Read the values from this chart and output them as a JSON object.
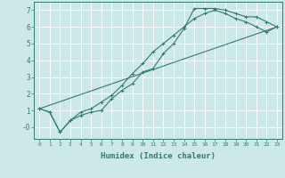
{
  "xlabel": "Humidex (Indice chaleur)",
  "ylabel": "",
  "bg_color": "#cce8e8",
  "grid_color": "#ffffff",
  "line_color": "#2d7d6e",
  "xlim": [
    -0.5,
    23.5
  ],
  "ylim": [
    -0.7,
    7.5
  ],
  "xticks": [
    0,
    1,
    2,
    3,
    4,
    5,
    6,
    7,
    8,
    9,
    10,
    11,
    12,
    13,
    14,
    15,
    16,
    17,
    18,
    19,
    20,
    21,
    22,
    23
  ],
  "yticks": [
    0,
    1,
    2,
    3,
    4,
    5,
    6,
    7
  ],
  "ytick_labels": [
    "-0",
    "1",
    "2",
    "3",
    "4",
    "5",
    "6",
    "7"
  ],
  "line1_x": [
    0,
    1,
    2,
    3,
    4,
    5,
    6,
    7,
    8,
    9,
    10,
    11,
    12,
    13,
    14,
    15,
    16,
    17,
    18,
    19,
    20,
    21,
    22,
    23
  ],
  "line1_y": [
    1.1,
    0.9,
    -0.3,
    0.4,
    0.7,
    0.9,
    1.0,
    1.7,
    2.2,
    2.6,
    3.3,
    3.5,
    4.4,
    5.0,
    5.9,
    7.1,
    7.1,
    7.1,
    7.0,
    6.8,
    6.6,
    6.6,
    6.3,
    6.0
  ],
  "line2_x": [
    0,
    23
  ],
  "line2_y": [
    1.1,
    6.0
  ],
  "line3_x": [
    0,
    1,
    2,
    3,
    4,
    5,
    6,
    7,
    8,
    9,
    10,
    11,
    12,
    13,
    14,
    15,
    16,
    17,
    18,
    19,
    20,
    21,
    22,
    23
  ],
  "line3_y": [
    1.1,
    0.9,
    -0.3,
    0.4,
    0.9,
    1.1,
    1.5,
    1.9,
    2.5,
    3.2,
    3.8,
    4.5,
    5.0,
    5.5,
    6.0,
    6.5,
    6.8,
    7.0,
    6.8,
    6.5,
    6.3,
    6.0,
    5.7,
    6.0
  ],
  "xtick_fontsize": 4.5,
  "ytick_fontsize": 5.5,
  "xlabel_fontsize": 6.5
}
